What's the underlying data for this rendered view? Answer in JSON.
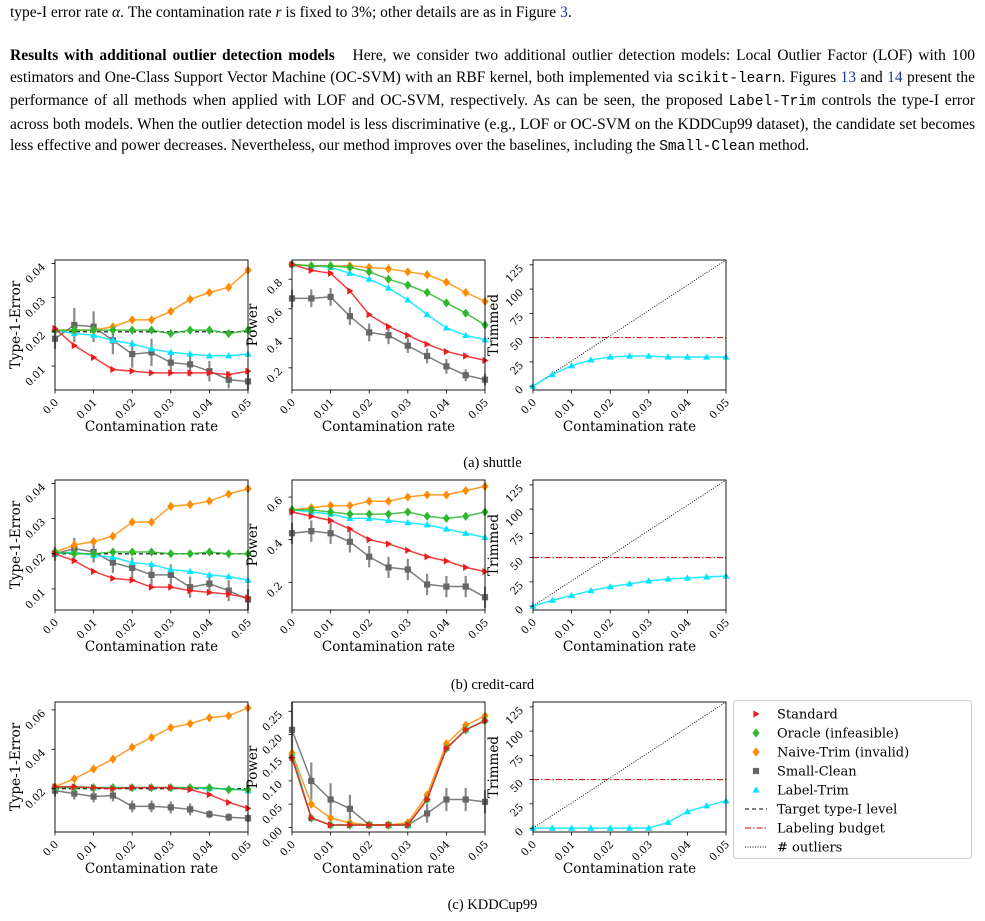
{
  "text": {
    "line0_a": "type-I error rate ",
    "line0_alpha": "α",
    "line0_b": ". The contamination rate ",
    "line0_r": "r",
    "line0_c": " is fixed to 3%; other details are as in Figure ",
    "line0_ref": "3",
    "line0_d": ".",
    "para_heading": "Results with additional outlier detection models",
    "para_a": "Here, we consider two additional outlier detection models: Local Outlier Factor (LOF) with 100 estimators and One-Class Support Vector Machine (OC-SVM) with an RBF kernel, both implemented via ",
    "para_code1": "scikit-learn",
    "para_b": ". Figures ",
    "para_ref1": "13",
    "para_c": " and ",
    "para_ref2": "14",
    "para_d": " present the performance of all methods when applied with LOF and OC-SVM, respectively. As can be seen, the proposed ",
    "para_code2": "Label-Trim",
    "para_e": " controls the type-I error across both models. When the outlier detection model is less discriminative (e.g., LOF or OC-SVM on the KDDCup99 dataset), the candidate set becomes less effective and power decreases. Nevertheless, our method improves over the baselines, including the ",
    "para_code3": "Small-Clean",
    "para_f": " method."
  },
  "captions": [
    "(a) shuttle",
    "(b) credit-card",
    "(c) KDDCup99"
  ],
  "colors": {
    "Standard": "#ee1c1c",
    "Oracle": "#2eb82e",
    "Naive": "#ff8c00",
    "Small": "#666666",
    "Label": "#00e5ff"
  },
  "chart_data": {
    "type": "line",
    "x": [
      0.0,
      0.005,
      0.01,
      0.015,
      0.02,
      0.025,
      0.03,
      0.035,
      0.04,
      0.045,
      0.05
    ],
    "x_ticks": [
      "0.0",
      "0.01",
      "0.02",
      "0.03",
      "0.04",
      "0.05"
    ],
    "xlabel": "Contamination rate",
    "legend": [
      {
        "label": "Standard",
        "key": "Standard",
        "marker": "tri-right"
      },
      {
        "label": "Oracle (infeasible)",
        "key": "Oracle",
        "marker": "diamond"
      },
      {
        "label": "Naive-Trim (invalid)",
        "key": "Naive",
        "marker": "diamond"
      },
      {
        "label": "Small-Clean",
        "key": "Small",
        "marker": "square"
      },
      {
        "label": "Label-Trim",
        "key": "Label",
        "marker": "tri-up"
      },
      {
        "label": "Target type-I level",
        "key": "target",
        "marker": "dashed"
      },
      {
        "label": "Labeling budget",
        "key": "budget",
        "marker": "dashdot"
      },
      {
        "label": "# outliers",
        "key": "outliers",
        "marker": "dotted"
      }
    ],
    "rows": [
      {
        "caption": "(a) shuttle",
        "type1": {
          "ylabel": "Type-1-Error",
          "ylim": [
            0.003,
            0.041
          ],
          "yticks": [
            "0.01",
            "0.02",
            "0.03",
            "0.04"
          ],
          "target": 0.02,
          "series": {
            "Standard": [
              0.021,
              0.016,
              0.0125,
              0.009,
              0.0085,
              0.008,
              0.008,
              0.008,
              0.008,
              0.0075,
              0.0085
            ],
            "Oracle": [
              0.0205,
              0.0205,
              0.0205,
              0.0205,
              0.0205,
              0.0205,
              0.0195,
              0.0205,
              0.0205,
              0.0195,
              0.0205
            ],
            "Naive": [
              0.0205,
              0.0205,
              0.0205,
              0.0215,
              0.0235,
              0.0235,
              0.026,
              0.0295,
              0.0315,
              0.033,
              0.038
            ],
            "Small": [
              0.018,
              0.022,
              0.0215,
              0.0175,
              0.0135,
              0.014,
              0.011,
              0.0105,
              0.0085,
              0.006,
              0.0055
            ],
            "Label": [
              0.0205,
              0.0195,
              0.019,
              0.0175,
              0.0165,
              0.015,
              0.014,
              0.0135,
              0.013,
              0.013,
              0.0135
            ]
          },
          "small_err": [
            0.003,
            0.005,
            0.0045,
            0.004,
            0.004,
            0.004,
            0.0035,
            0.0035,
            0.003,
            0.0025,
            0.0025
          ]
        },
        "power": {
          "ylabel": "Power",
          "ylim": [
            0.05,
            0.93
          ],
          "yticks": [
            "0.2",
            "0.4",
            "0.6",
            "0.8"
          ],
          "series": {
            "Standard": [
              0.9,
              0.86,
              0.84,
              0.72,
              0.56,
              0.48,
              0.42,
              0.36,
              0.31,
              0.28,
              0.25
            ],
            "Oracle": [
              0.9,
              0.89,
              0.89,
              0.88,
              0.85,
              0.8,
              0.76,
              0.71,
              0.64,
              0.57,
              0.49
            ],
            "Naive": [
              0.9,
              0.89,
              0.89,
              0.89,
              0.88,
              0.87,
              0.85,
              0.83,
              0.78,
              0.71,
              0.65
            ],
            "Small": [
              0.67,
              0.67,
              0.68,
              0.55,
              0.44,
              0.42,
              0.35,
              0.28,
              0.21,
              0.15,
              0.12
            ],
            "Label": [
              0.9,
              0.89,
              0.88,
              0.84,
              0.8,
              0.74,
              0.66,
              0.56,
              0.47,
              0.42,
              0.39
            ]
          },
          "small_err": [
            0.06,
            0.06,
            0.06,
            0.06,
            0.06,
            0.06,
            0.05,
            0.05,
            0.05,
            0.04,
            0.04
          ]
        },
        "trimmed": {
          "ylabel": "Trimmed",
          "ylim": [
            -4,
            130
          ],
          "yticks": [
            "0",
            "25",
            "50",
            "75",
            "100",
            "125"
          ],
          "budget": 50,
          "outliers_at_end": 130,
          "series": {
            "Label": [
              0,
              12,
              21,
              27,
              30,
              31,
              31,
              30,
              30,
              30,
              30
            ]
          }
        }
      },
      {
        "caption": "(b) credit-card",
        "type1": {
          "ylabel": "Type-1-Error",
          "ylim": [
            0.004,
            0.041
          ],
          "yticks": [
            "0.01",
            "0.02",
            "0.03",
            "0.04"
          ],
          "target": 0.02,
          "series": {
            "Standard": [
              0.02,
              0.018,
              0.015,
              0.013,
              0.0125,
              0.0105,
              0.0105,
              0.0095,
              0.009,
              0.0085,
              0.0075
            ],
            "Oracle": [
              0.0205,
              0.02,
              0.02,
              0.0205,
              0.0205,
              0.0205,
              0.02,
              0.02,
              0.0205,
              0.02,
              0.02
            ],
            "Naive": [
              0.0205,
              0.0225,
              0.0235,
              0.025,
              0.029,
              0.029,
              0.0335,
              0.034,
              0.035,
              0.037,
              0.0385
            ],
            "Small": [
              0.02,
              0.0215,
              0.0205,
              0.0175,
              0.016,
              0.014,
              0.014,
              0.0105,
              0.0115,
              0.0095,
              0.007
            ],
            "Label": [
              0.02,
              0.0205,
              0.0195,
              0.019,
              0.0175,
              0.017,
              0.0155,
              0.015,
              0.014,
              0.0135,
              0.0125
            ]
          },
          "small_err": [
            0.002,
            0.003,
            0.003,
            0.003,
            0.003,
            0.003,
            0.003,
            0.003,
            0.003,
            0.003,
            0.003
          ]
        },
        "power": {
          "ylabel": "Power",
          "ylim": [
            0.07,
            0.68
          ],
          "yticks": [
            "0.2",
            "0.4",
            "0.6"
          ],
          "series": {
            "Standard": [
              0.53,
              0.51,
              0.49,
              0.45,
              0.4,
              0.38,
              0.35,
              0.32,
              0.3,
              0.27,
              0.25
            ],
            "Oracle": [
              0.54,
              0.54,
              0.53,
              0.52,
              0.52,
              0.52,
              0.53,
              0.51,
              0.5,
              0.51,
              0.53
            ],
            "Naive": [
              0.54,
              0.55,
              0.56,
              0.56,
              0.58,
              0.58,
              0.6,
              0.61,
              0.61,
              0.63,
              0.65
            ],
            "Small": [
              0.43,
              0.44,
              0.43,
              0.39,
              0.32,
              0.27,
              0.26,
              0.19,
              0.18,
              0.18,
              0.13
            ],
            "Label": [
              0.54,
              0.53,
              0.52,
              0.5,
              0.5,
              0.49,
              0.48,
              0.47,
              0.45,
              0.43,
              0.41
            ]
          },
          "small_err": [
            0.05,
            0.05,
            0.05,
            0.05,
            0.05,
            0.05,
            0.05,
            0.05,
            0.05,
            0.05,
            0.05
          ]
        },
        "trimmed": {
          "ylabel": "Trimmed",
          "ylim": [
            -4,
            130
          ],
          "yticks": [
            "0",
            "25",
            "50",
            "75",
            "100",
            "125"
          ],
          "budget": 50,
          "outliers_at_end": 130,
          "series": {
            "Label": [
              0,
              6,
              11,
              16,
              20,
              23,
              26,
              28,
              29,
              30,
              31
            ]
          }
        }
      },
      {
        "caption": "(c) KDDCup99",
        "type1": {
          "ylabel": "Type-1-Error",
          "ylim": [
            -0.002,
            0.064
          ],
          "yticks": [
            "0.02",
            "0.04",
            "0.06"
          ],
          "target": 0.02,
          "series": {
            "Standard": [
              0.021,
              0.021,
              0.0205,
              0.02,
              0.0205,
              0.0205,
              0.0205,
              0.0195,
              0.017,
              0.013,
              0.01
            ],
            "Oracle": [
              0.0205,
              0.0205,
              0.0205,
              0.0205,
              0.0205,
              0.0205,
              0.0205,
              0.0205,
              0.0205,
              0.0195,
              0.0195
            ],
            "Naive": [
              0.021,
              0.025,
              0.03,
              0.035,
              0.041,
              0.046,
              0.051,
              0.053,
              0.056,
              0.057,
              0.061
            ],
            "Small": [
              0.019,
              0.0175,
              0.016,
              0.0165,
              0.011,
              0.011,
              0.0105,
              0.0095,
              0.007,
              0.0055,
              0.005
            ],
            "Label": [
              0.0205,
              0.021,
              0.0205,
              0.0205,
              0.0205,
              0.0205,
              0.0205,
              0.0205,
              0.02,
              0.02,
              0.019
            ]
          },
          "small_err": [
            0.003,
            0.003,
            0.003,
            0.003,
            0.003,
            0.003,
            0.003,
            0.003,
            0.002,
            0.002,
            0.002
          ]
        },
        "power": {
          "ylabel": "Power",
          "ylim": [
            -0.01,
            0.27
          ],
          "yticks": [
            "0.00",
            "0.05",
            "0.10",
            "0.15",
            "0.20",
            "0.25"
          ],
          "series": {
            "Standard": [
              0.15,
              0.02,
              0.005,
              0.005,
              0.005,
              0.005,
              0.005,
              0.06,
              0.17,
              0.21,
              0.23
            ],
            "Oracle": [
              0.15,
              0.02,
              0.005,
              0.005,
              0.005,
              0.005,
              0.005,
              0.06,
              0.17,
              0.21,
              0.23
            ],
            "Naive": [
              0.16,
              0.05,
              0.02,
              0.01,
              0.005,
              0.005,
              0.01,
              0.07,
              0.18,
              0.22,
              0.24
            ],
            "Small": [
              0.21,
              0.1,
              0.06,
              0.04,
              0.005,
              0.005,
              0.005,
              0.03,
              0.06,
              0.06,
              0.055
            ],
            "Label": [
              0.16,
              0.02,
              0.005,
              0.005,
              0.005,
              0.005,
              0.005,
              0.06,
              0.17,
              0.21,
              0.23
            ]
          },
          "small_err": [
            0.06,
            0.04,
            0.035,
            0.03,
            0.005,
            0.005,
            0.005,
            0.02,
            0.025,
            0.025,
            0.025
          ]
        },
        "trimmed": {
          "ylabel": "Trimmed",
          "ylim": [
            -4,
            130
          ],
          "yticks": [
            "0",
            "25",
            "50",
            "75",
            "100",
            "125"
          ],
          "budget": 50,
          "outliers_at_end": 130,
          "series": {
            "Label": [
              0,
              0,
              0,
              0,
              0,
              0,
              0,
              6,
              17,
              23,
              28
            ]
          }
        }
      }
    ]
  }
}
